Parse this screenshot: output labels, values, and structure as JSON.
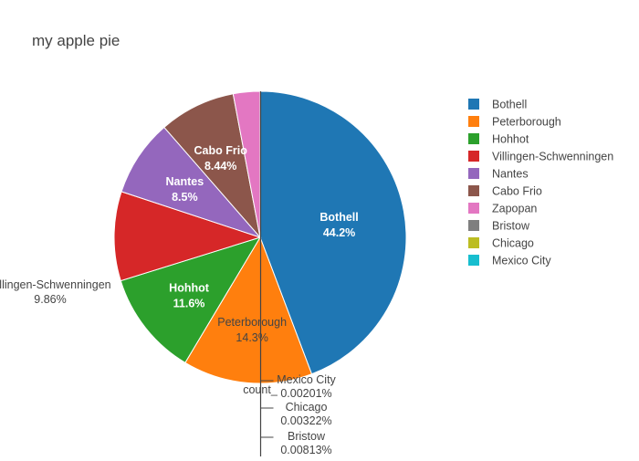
{
  "chart_data": {
    "type": "pie",
    "title": "my apple pie",
    "value_label": "count_",
    "legend_position": "right",
    "slices": [
      {
        "label": "Bothell",
        "percent": 44.2,
        "percent_text": "44.2%",
        "color": "#1f77b4",
        "label_color": "#ffffff"
      },
      {
        "label": "Peterborough",
        "percent": 14.3,
        "percent_text": "14.3%",
        "color": "#ff7f0e",
        "label_color": "#444444"
      },
      {
        "label": "Hohhot",
        "percent": 11.6,
        "percent_text": "11.6%",
        "color": "#2ca02c",
        "label_color": "#ffffff"
      },
      {
        "label": "Villingen-Schwenningen",
        "percent": 9.86,
        "percent_text": "9.86%",
        "color": "#d62728",
        "label_color": "#444444"
      },
      {
        "label": "Nantes",
        "percent": 8.5,
        "percent_text": "8.5%",
        "color": "#9467bd",
        "label_color": "#ffffff"
      },
      {
        "label": "Cabo Frio",
        "percent": 8.44,
        "percent_text": "8.44%",
        "color": "#8c564b",
        "label_color": "#ffffff"
      },
      {
        "label": "Zapopan",
        "percent": 2.95,
        "percent_text": "",
        "color": "#e377c2",
        "label_color": "#444444"
      },
      {
        "label": "Bristow",
        "percent": 0.00813,
        "percent_text": "0.00813%",
        "color": "#7f7f7f",
        "label_color": "#444444"
      },
      {
        "label": "Chicago",
        "percent": 0.00322,
        "percent_text": "0.00322%",
        "color": "#bcbd22",
        "label_color": "#444444"
      },
      {
        "label": "Mexico City",
        "percent": 0.00201,
        "percent_text": "0.00201%",
        "color": "#17becf",
        "label_color": "#444444"
      }
    ],
    "legend": [
      {
        "label": "Bothell",
        "color": "#1f77b4"
      },
      {
        "label": "Peterborough",
        "color": "#ff7f0e"
      },
      {
        "label": "Hohhot",
        "color": "#2ca02c"
      },
      {
        "label": "Villingen-Schwenningen",
        "color": "#d62728"
      },
      {
        "label": "Nantes",
        "color": "#9467bd"
      },
      {
        "label": "Cabo Frio",
        "color": "#8c564b"
      },
      {
        "label": "Zapopan",
        "color": "#e377c2"
      },
      {
        "label": "Bristow",
        "color": "#7f7f7f"
      },
      {
        "label": "Chicago",
        "color": "#bcbd22"
      },
      {
        "label": "Mexico City",
        "color": "#17becf"
      }
    ]
  }
}
